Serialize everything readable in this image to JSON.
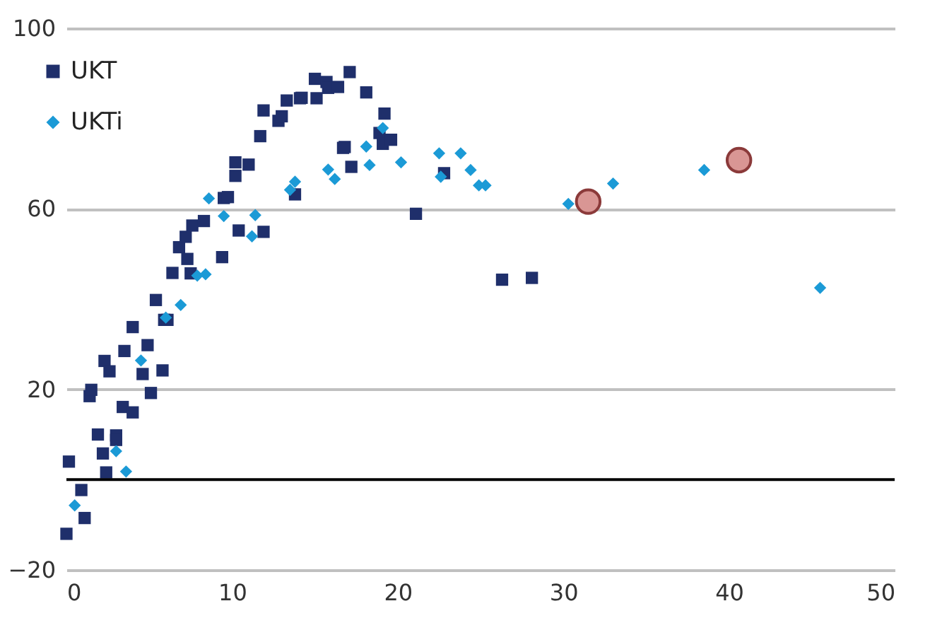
{
  "chart_data": {
    "type": "scatter",
    "xlim": [
      0,
      50
    ],
    "xticks": [
      0,
      10,
      20,
      30,
      40,
      50
    ],
    "ylim": [
      -20,
      100
    ],
    "yticks": [
      -20,
      20,
      60,
      100
    ],
    "grid": "y",
    "legend": "top left",
    "ref_lines": [
      {
        "axis": "y",
        "value": 0,
        "color": "#000000"
      }
    ],
    "series": [
      {
        "name": "UKT",
        "color": "#1f2f6b",
        "marker": "square",
        "x": [
          0.0,
          0.15,
          0.9,
          1.1,
          1.4,
          1.5,
          1.9,
          2.2,
          2.3,
          2.4,
          2.6,
          3.0,
          3.0,
          3.4,
          3.5,
          4.0,
          4.0,
          4.6,
          4.9,
          5.1,
          5.4,
          5.8,
          5.9,
          6.1,
          6.4,
          6.8,
          7.2,
          7.3,
          7.5,
          7.6,
          8.3,
          9.4,
          9.5,
          9.75,
          10.2,
          10.2,
          10.4,
          11.0,
          11.7,
          11.9,
          11.9,
          12.8,
          13.0,
          13.3,
          13.8,
          14.1,
          14.2,
          15.0,
          15.1,
          15.7,
          15.8,
          16.4,
          16.7,
          16.8,
          17.1,
          17.2,
          18.1,
          18.9,
          19.1,
          19.2,
          19.6,
          21.1,
          22.8,
          26.3,
          28.1
        ],
        "values": [
          -12.0,
          4.0,
          -2.3,
          -8.5,
          18.5,
          19.9,
          10.0,
          5.8,
          26.3,
          1.6,
          24.0,
          9.8,
          8.8,
          16.1,
          28.5,
          14.9,
          33.8,
          23.4,
          29.8,
          19.2,
          39.8,
          24.2,
          35.4,
          35.4,
          45.8,
          51.5,
          53.8,
          48.9,
          45.7,
          56.3,
          57.3,
          49.3,
          62.4,
          62.6,
          67.3,
          70.3,
          55.2,
          69.8,
          76.1,
          54.9,
          81.8,
          79.5,
          80.5,
          84.0,
          63.2,
          84.5,
          84.6,
          88.8,
          84.5,
          88.1,
          86.8,
          87.0,
          73.5,
          73.7,
          90.3,
          69.3,
          85.8,
          76.8,
          74.4,
          81.1,
          75.3,
          58.9,
          67.9,
          44.3,
          44.7
        ]
      },
      {
        "name": "UKTi",
        "color": "#1b9ad6",
        "marker": "diamond",
        "x": [
          0.5,
          3.0,
          3.6,
          4.5,
          6.0,
          6.9,
          7.9,
          8.4,
          8.6,
          9.5,
          11.2,
          11.4,
          13.5,
          13.8,
          15.8,
          16.2,
          18.1,
          18.3,
          19.1,
          20.1,
          20.2,
          22.5,
          22.6,
          23.8,
          24.4,
          24.9,
          25.3,
          30.3,
          33.0,
          38.5,
          45.5
        ],
        "values": [
          -5.7,
          6.3,
          1.8,
          26.4,
          35.9,
          38.7,
          45.2,
          45.5,
          62.3,
          58.4,
          53.9,
          58.6,
          64.2,
          66.0,
          68.7,
          66.6,
          73.8,
          69.7,
          77.9,
          null,
          70.3,
          72.3,
          67.1,
          72.3,
          68.6,
          65.2,
          65.2,
          61.1,
          65.6,
          68.6,
          42.5
        ]
      },
      {
        "type": "scatter",
        "color": "#d99694",
        "marker": "circle",
        "x": [
          31.5,
          40.6
        ],
        "values": [
          61.6,
          70.8
        ]
      }
    ]
  }
}
